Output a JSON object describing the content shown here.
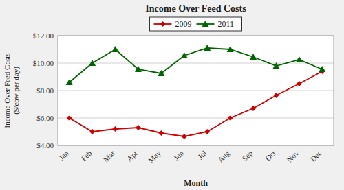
{
  "chart_data": {
    "type": "line",
    "title": "Income Over Feed Costs",
    "xlabel": "Month",
    "ylabel": "Income Over Feed Costs\n($/cow per day)",
    "categories": [
      "Jan",
      "Feb",
      "Mar",
      "Apr",
      "May",
      "Jun",
      "Jul",
      "Aug",
      "Sep",
      "Oct",
      "Nov",
      "Dec"
    ],
    "series": [
      {
        "name": "2009",
        "color": "#CC0000",
        "marker": "diamond",
        "values": [
          6.0,
          5.0,
          5.2,
          5.3,
          4.9,
          4.65,
          5.0,
          6.0,
          6.7,
          7.65,
          8.5,
          9.4
        ]
      },
      {
        "name": "2011",
        "color": "#006400",
        "marker": "triangle",
        "values": [
          8.6,
          10.0,
          11.0,
          9.55,
          9.25,
          10.55,
          11.1,
          11.0,
          10.45,
          9.8,
          10.25,
          9.55
        ]
      }
    ],
    "ylim": [
      4.0,
      12.0
    ],
    "yticks": [
      {
        "value": 4.0,
        "label": "$4.00"
      },
      {
        "value": 6.0,
        "label": "$6.00"
      },
      {
        "value": 8.0,
        "label": "$8.00"
      },
      {
        "value": 10.0,
        "label": "$10.00"
      },
      {
        "value": 12.0,
        "label": "$12.00"
      }
    ],
    "grid": true,
    "legend": "top"
  }
}
